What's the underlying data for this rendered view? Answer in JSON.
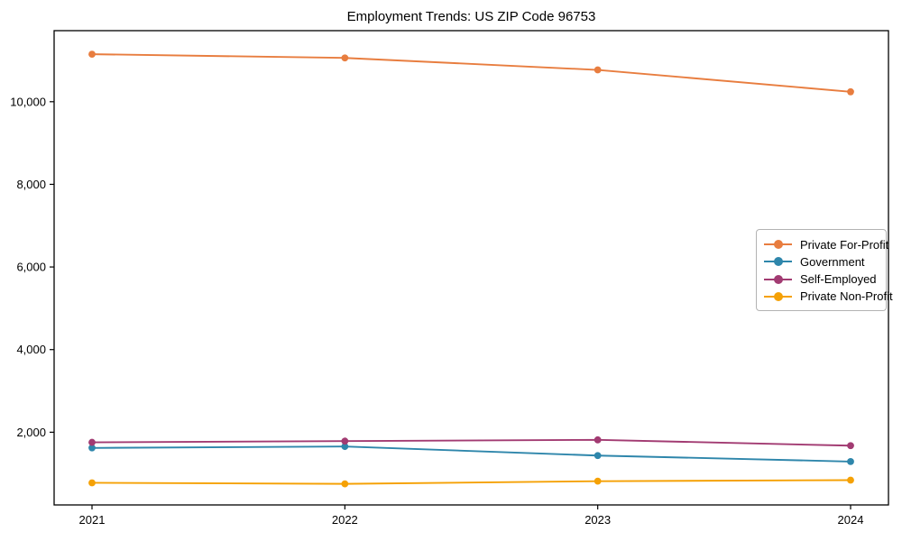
{
  "title": "Employment Trends: US ZIP Code 96753",
  "chart_data": {
    "type": "line",
    "title": "Employment Trends: US ZIP Code 96753",
    "xlabel": "",
    "ylabel": "",
    "x": [
      2021,
      2022,
      2023,
      2024
    ],
    "x_tick_labels": [
      "2021",
      "2022",
      "2023",
      "2024"
    ],
    "yticks": [
      2000,
      4000,
      6000,
      8000,
      10000
    ],
    "ytick_labels": [
      "2,000",
      "4,000",
      "6,000",
      "8,000",
      "10,000"
    ],
    "ylim": [
      240,
      11720
    ],
    "grid": false,
    "marker": "circle",
    "legend_position": "center-right",
    "series": [
      {
        "name": "Private For-Profit",
        "color": "#E87D3F",
        "values": [
          11150,
          11060,
          10770,
          10240
        ]
      },
      {
        "name": "Government",
        "color": "#2E86AB",
        "values": [
          1620,
          1655,
          1435,
          1290
        ]
      },
      {
        "name": "Self-Employed",
        "color": "#A23B72",
        "values": [
          1755,
          1785,
          1815,
          1675
        ]
      },
      {
        "name": "Private Non-Profit",
        "color": "#F5A105",
        "values": [
          775,
          750,
          815,
          840
        ]
      }
    ]
  },
  "colors": {
    "axis": "#000000",
    "text": "#000000",
    "legend_border": "#b3b3b3",
    "background": "#ffffff"
  }
}
